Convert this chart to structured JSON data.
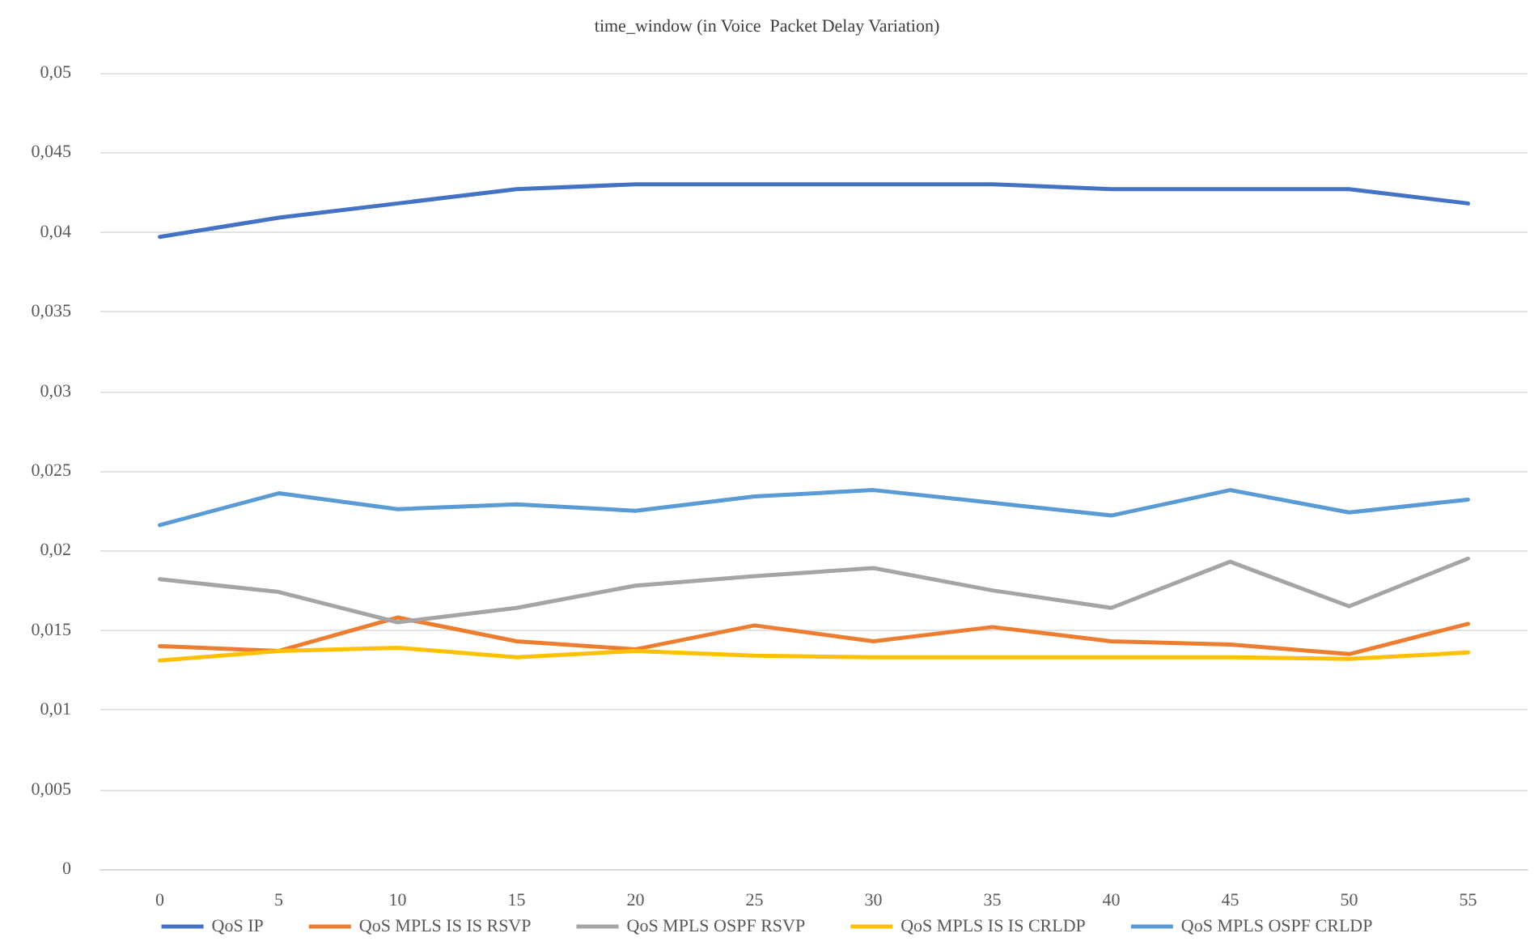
{
  "chart_data": {
    "type": "line",
    "title": "time_window (in Voice  Packet Delay Variation)",
    "categories": [
      "0",
      "5",
      "10",
      "15",
      "20",
      "25",
      "30",
      "35",
      "40",
      "45",
      "50",
      "55"
    ],
    "ylim": [
      0,
      0.05
    ],
    "yticks": [
      {
        "value": 0,
        "label": "0"
      },
      {
        "value": 0.005,
        "label": "0,005"
      },
      {
        "value": 0.01,
        "label": "0,01"
      },
      {
        "value": 0.015,
        "label": "0,015"
      },
      {
        "value": 0.02,
        "label": "0,02"
      },
      {
        "value": 0.025,
        "label": "0,025"
      },
      {
        "value": 0.03,
        "label": "0,03"
      },
      {
        "value": 0.035,
        "label": "0,035"
      },
      {
        "value": 0.04,
        "label": "0,04"
      },
      {
        "value": 0.045,
        "label": "0,045"
      },
      {
        "value": 0.05,
        "label": "0,05"
      }
    ],
    "grid": "y",
    "legend": "bottom",
    "marker": "none",
    "line_style": "solid",
    "series": [
      {
        "name": "QoS IP",
        "color": "#4472c4",
        "values": [
          0.0397,
          0.0409,
          0.0418,
          0.0427,
          0.043,
          0.043,
          0.043,
          0.043,
          0.0427,
          0.0427,
          0.0427,
          0.0418
        ]
      },
      {
        "name": "QoS MPLS IS IS RSVP",
        "color": "#ed7d31",
        "values": [
          0.014,
          0.0137,
          0.0158,
          0.0143,
          0.0138,
          0.0153,
          0.0143,
          0.0152,
          0.0143,
          0.0141,
          0.0135,
          0.0154
        ]
      },
      {
        "name": "QoS MPLS OSPF RSVP",
        "color": "#a5a5a5",
        "values": [
          0.0182,
          0.0174,
          0.0155,
          0.0164,
          0.0178,
          0.0184,
          0.0189,
          0.0175,
          0.0164,
          0.0193,
          0.0165,
          0.0195
        ]
      },
      {
        "name": "QoS MPLS IS IS CRLDP",
        "color": "#ffc000",
        "values": [
          0.0131,
          0.0137,
          0.0139,
          0.0133,
          0.0137,
          0.0134,
          0.0133,
          0.0133,
          0.0133,
          0.0133,
          0.0132,
          0.0136
        ]
      },
      {
        "name": "QoS MPLS OSPF CRLDP",
        "color": "#5b9bd5",
        "values": [
          0.0216,
          0.0236,
          0.0226,
          0.0229,
          0.0225,
          0.0234,
          0.0238,
          0.023,
          0.0222,
          0.0238,
          0.0224,
          0.0232
        ]
      }
    ]
  }
}
